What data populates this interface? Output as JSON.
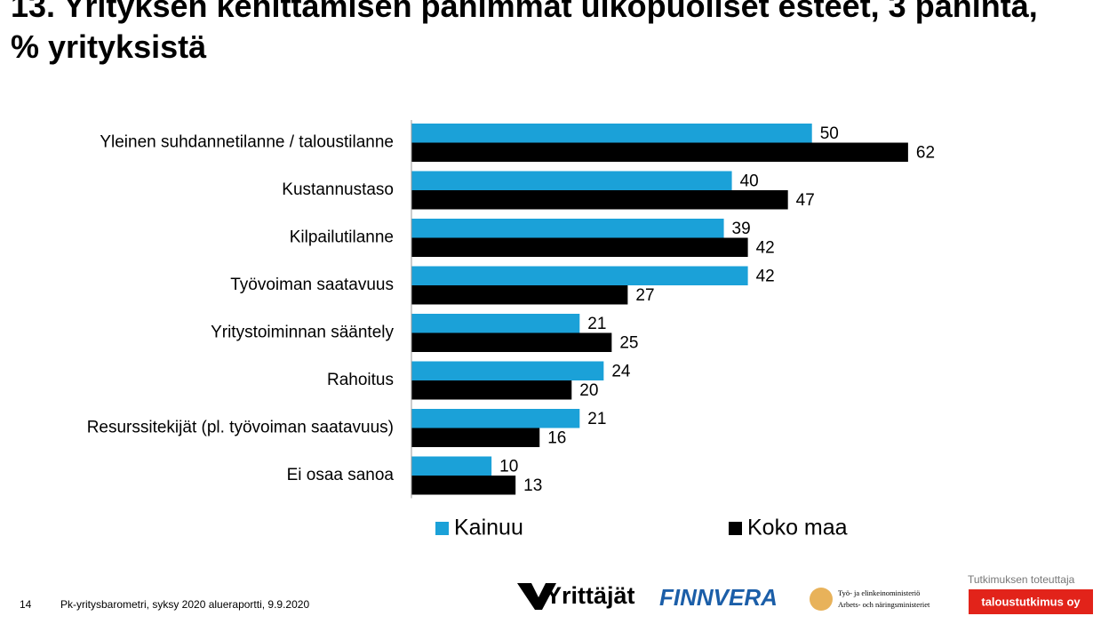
{
  "chart_data": {
    "type": "bar",
    "orientation": "horizontal",
    "title": "13. Yrityksen kehittämisen pahimmat ulkopuoliset esteet, 3 pahinta, % yrityksistä",
    "categories": [
      "Yleinen suhdannetilanne / taloustilanne",
      "Kustannustaso",
      "Kilpailutilanne",
      "Työvoiman saatavuus",
      "Yritystoiminnan sääntely",
      "Rahoitus",
      "Resurssitekijät (pl. työvoiman saatavuus)",
      "Ei osaa sanoa"
    ],
    "series": [
      {
        "name": "Kainuu",
        "color": "#1ba1d8",
        "values": [
          50,
          40,
          39,
          42,
          21,
          24,
          21,
          10
        ]
      },
      {
        "name": "Koko maa",
        "color": "#000000",
        "values": [
          62,
          47,
          42,
          27,
          25,
          20,
          16,
          13
        ]
      }
    ],
    "xlim": [
      0,
      70
    ]
  },
  "footer": {
    "page": "14",
    "source": "Pk-yritysbarometri, syksy 2020 alueraportti, 9.9.2020",
    "logos": [
      "Yrittäjät",
      "FINNVERA",
      "Työ- ja elinkeinoministeriö",
      "Arbets- och näringsministeriet",
      "Tutkimuksen toteuttaja",
      "taloustutkimus oy"
    ]
  }
}
